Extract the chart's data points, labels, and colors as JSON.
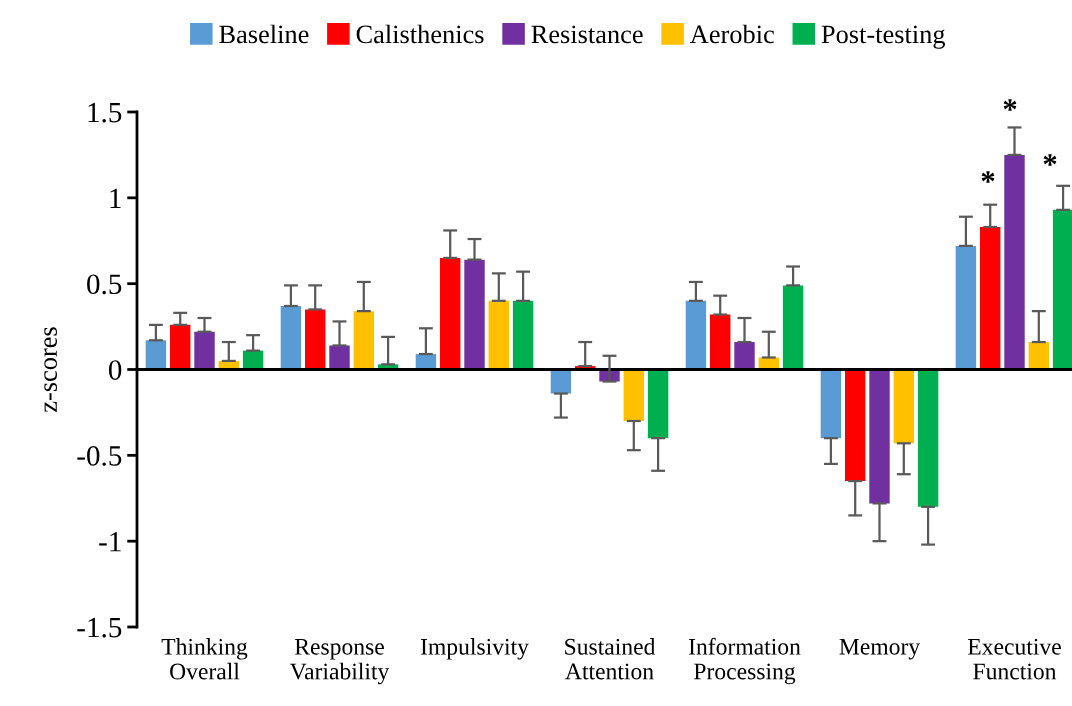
{
  "chart_data": {
    "type": "bar",
    "ylabel": "z-scores",
    "categories": [
      "Thinking\nOverall",
      "Response\nVariability",
      "Impulsivity",
      "Sustained\nAttention",
      "Information\nProcessing",
      "Memory",
      "Executive\nFunction"
    ],
    "series": [
      {
        "name": "Baseline",
        "color": "#5b9bd5",
        "values": [
          0.17,
          0.37,
          0.09,
          -0.14,
          0.4,
          -0.4,
          0.72
        ],
        "errors": [
          [
            0.17,
            0.26
          ],
          [
            0.37,
            0.49
          ],
          [
            0.09,
            0.24
          ],
          [
            -0.28,
            -0.14
          ],
          [
            0.4,
            0.51
          ],
          [
            -0.55,
            -0.4
          ],
          [
            0.72,
            0.89
          ]
        ]
      },
      {
        "name": "Calisthenics",
        "color": "#ff0000",
        "values": [
          0.26,
          0.35,
          0.65,
          0.02,
          0.32,
          -0.65,
          0.83
        ],
        "errors": [
          [
            0.26,
            0.33
          ],
          [
            0.35,
            0.49
          ],
          [
            0.65,
            0.81
          ],
          [
            0.02,
            0.16
          ],
          [
            0.32,
            0.43
          ],
          [
            -0.85,
            -0.65
          ],
          [
            0.83,
            0.96
          ]
        ]
      },
      {
        "name": "Resistance",
        "color": "#7030a0",
        "values": [
          0.22,
          0.14,
          0.64,
          -0.07,
          0.16,
          -0.78,
          1.25
        ],
        "errors": [
          [
            0.22,
            0.3
          ],
          [
            0.14,
            0.28
          ],
          [
            0.64,
            0.76
          ],
          [
            -0.07,
            0.08
          ],
          [
            0.16,
            0.3
          ],
          [
            -1.0,
            -0.78
          ],
          [
            1.25,
            1.41
          ]
        ]
      },
      {
        "name": "Aerobic",
        "color": "#ffc000",
        "values": [
          0.05,
          0.34,
          0.4,
          -0.3,
          0.07,
          -0.43,
          0.16
        ],
        "errors": [
          [
            0.05,
            0.16
          ],
          [
            0.34,
            0.51
          ],
          [
            0.4,
            0.56
          ],
          [
            -0.47,
            -0.3
          ],
          [
            0.07,
            0.22
          ],
          [
            -0.61,
            -0.43
          ],
          [
            0.16,
            0.34
          ]
        ]
      },
      {
        "name": "Post-testing",
        "color": "#00b050",
        "values": [
          0.11,
          0.03,
          0.4,
          -0.4,
          0.49,
          -0.8,
          0.93
        ],
        "errors": [
          [
            0.11,
            0.2
          ],
          [
            0.03,
            0.19
          ],
          [
            0.4,
            0.57
          ],
          [
            -0.59,
            -0.4
          ],
          [
            0.49,
            0.6
          ],
          [
            -1.02,
            -0.8
          ],
          [
            0.93,
            1.07
          ]
        ]
      }
    ],
    "annotations": [
      "*",
      "*",
      "*"
    ],
    "ylim": [
      -1.5,
      1.5
    ],
    "yticks": [
      -1.5,
      -1,
      -0.5,
      0,
      0.5,
      1,
      1.5
    ],
    "legend": "top"
  }
}
